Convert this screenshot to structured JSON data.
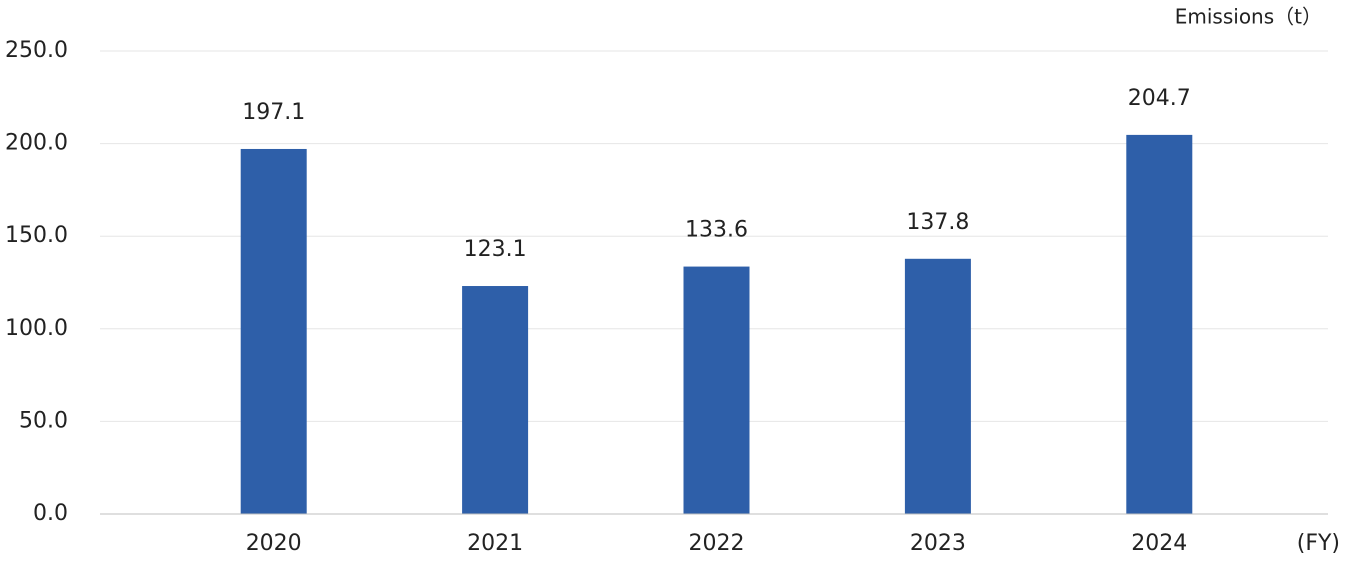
{
  "chart_data": {
    "type": "bar",
    "y_axis_label": "Emissions（t）",
    "x_axis_label": "(FY)",
    "categories": [
      "2020",
      "2021",
      "2022",
      "2023",
      "2024"
    ],
    "values": [
      197.1,
      123.1,
      133.6,
      137.8,
      204.7
    ],
    "color": "#2e5fa9",
    "ylim": [
      0,
      250
    ],
    "yticks": [
      {
        "value": 0,
        "label": "0.0"
      },
      {
        "value": 50,
        "label": "50.0"
      },
      {
        "value": 100,
        "label": "100.0"
      },
      {
        "value": 150,
        "label": "150.0"
      },
      {
        "value": 200,
        "label": "200.0"
      },
      {
        "value": 250,
        "label": "250.0"
      }
    ],
    "grid": true
  }
}
